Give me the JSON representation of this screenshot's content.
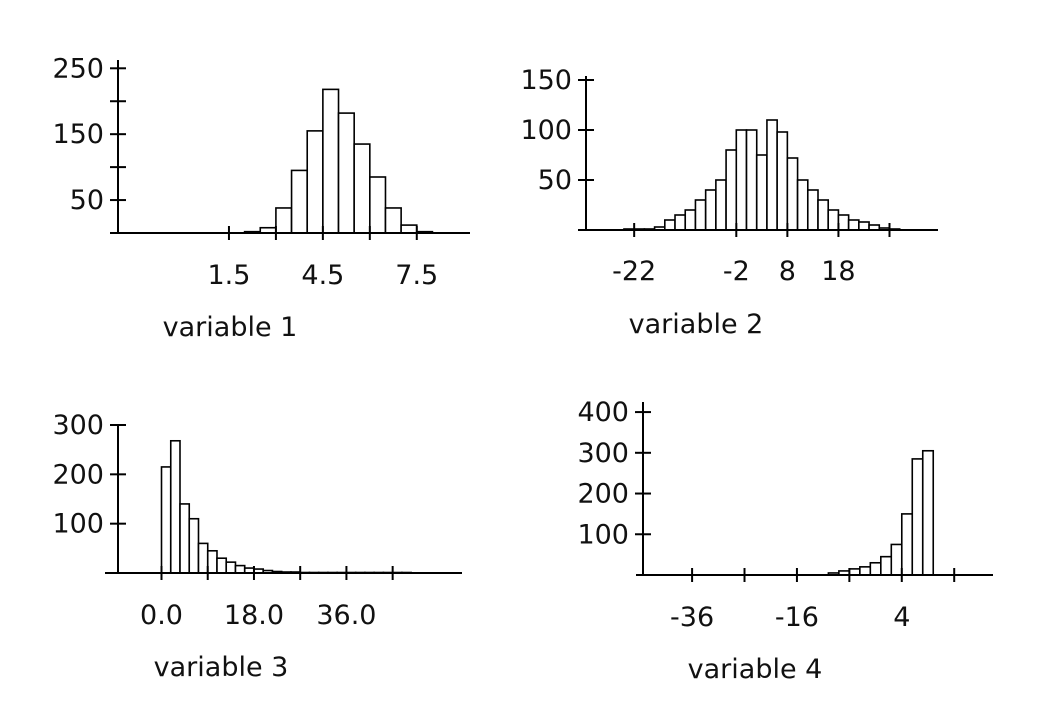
{
  "chart_data": [
    {
      "type": "bar",
      "xlabel": "variable 1",
      "ylabel": "",
      "title": "",
      "x_ticks": [
        {
          "value": 1.5,
          "label": "1.5"
        },
        {
          "value": 3.0,
          "label": ""
        },
        {
          "value": 4.5,
          "label": "4.5"
        },
        {
          "value": 6.0,
          "label": ""
        },
        {
          "value": 7.5,
          "label": "7.5"
        }
      ],
      "y_ticks": [
        {
          "value": 50,
          "label": "50"
        },
        {
          "value": 100,
          "label": ""
        },
        {
          "value": 150,
          "label": "150"
        },
        {
          "value": 200,
          "label": ""
        },
        {
          "value": 250,
          "label": "250"
        }
      ],
      "xlim": [
        -2.3,
        9.2
      ],
      "ylim": [
        0,
        255
      ],
      "bin_edges": [
        2.0,
        2.5,
        3.0,
        3.5,
        4.0,
        4.5,
        5.0,
        5.5,
        6.0,
        6.5,
        7.0,
        7.5,
        8.0
      ],
      "values": [
        2,
        8,
        38,
        95,
        155,
        218,
        182,
        135,
        85,
        38,
        12,
        2
      ]
    },
    {
      "type": "bar",
      "xlabel": "variable 2",
      "ylabel": "",
      "title": "",
      "x_ticks": [
        {
          "value": -22,
          "label": "-22"
        },
        {
          "value": -2,
          "label": "-2"
        },
        {
          "value": 8,
          "label": "8"
        },
        {
          "value": 18,
          "label": "18"
        },
        {
          "value": 28,
          "label": ""
        }
      ],
      "y_ticks": [
        {
          "value": 50,
          "label": "50"
        },
        {
          "value": 100,
          "label": "100"
        },
        {
          "value": 150,
          "label": "150"
        }
      ],
      "xlim": [
        -33,
        37.5
      ],
      "ylim": [
        0,
        150
      ],
      "bin_edges": [
        -24,
        -22,
        -20,
        -18,
        -16,
        -14,
        -12,
        -10,
        -8,
        -6,
        -4,
        -2,
        0,
        2,
        4,
        6,
        8,
        10,
        12,
        14,
        16,
        18,
        20,
        22,
        24,
        26,
        28,
        30
      ],
      "values": [
        1,
        1,
        1,
        3,
        10,
        15,
        20,
        30,
        40,
        50,
        80,
        100,
        100,
        75,
        110,
        98,
        72,
        50,
        40,
        30,
        20,
        15,
        10,
        8,
        5,
        2,
        1
      ]
    },
    {
      "type": "bar",
      "xlabel": "variable 3",
      "ylabel": "",
      "title": "",
      "x_ticks": [
        {
          "value": 0.0,
          "label": "0.0"
        },
        {
          "value": 9.0,
          "label": ""
        },
        {
          "value": 18.0,
          "label": "18.0"
        },
        {
          "value": 27.0,
          "label": ""
        },
        {
          "value": 36.0,
          "label": "36.0"
        },
        {
          "value": 45.0,
          "label": ""
        }
      ],
      "y_ticks": [
        {
          "value": 100,
          "label": "100"
        },
        {
          "value": 200,
          "label": "200"
        },
        {
          "value": 300,
          "label": "300"
        }
      ],
      "xlim": [
        -11,
        58.5
      ],
      "ylim": [
        0,
        300
      ],
      "bin_edges": [
        0,
        1.8,
        3.6,
        5.4,
        7.2,
        9,
        10.8,
        12.6,
        14.4,
        16.2,
        18,
        19.8,
        21.6,
        23.4,
        25.2,
        27,
        28.8,
        30.6,
        32.4,
        34.2,
        36,
        37.8,
        39.6,
        41.4,
        43.2,
        45,
        46.8,
        48.6
      ],
      "values": [
        215,
        268,
        140,
        110,
        60,
        45,
        30,
        22,
        15,
        10,
        8,
        5,
        3,
        2,
        2,
        1,
        1,
        1,
        1,
        1,
        1,
        1,
        1,
        1,
        1,
        1,
        1
      ]
    },
    {
      "type": "bar",
      "xlabel": "variable 4",
      "ylabel": "",
      "title": "",
      "x_ticks": [
        {
          "value": -36,
          "label": "-36"
        },
        {
          "value": -26,
          "label": ""
        },
        {
          "value": -16,
          "label": "-16"
        },
        {
          "value": -6,
          "label": ""
        },
        {
          "value": 4,
          "label": "4"
        },
        {
          "value": 14,
          "label": ""
        }
      ],
      "y_ticks": [
        {
          "value": 100,
          "label": "100"
        },
        {
          "value": 200,
          "label": "200"
        },
        {
          "value": 300,
          "label": "300"
        },
        {
          "value": 400,
          "label": "400"
        }
      ],
      "xlim": [
        -46.7,
        21.4
      ],
      "ylim": [
        0,
        410
      ],
      "bin_edges": [
        -10,
        -8,
        -6,
        -4,
        -2,
        0,
        2,
        4,
        6,
        8,
        10
      ],
      "values": [
        5,
        10,
        15,
        20,
        30,
        45,
        75,
        150,
        285,
        305
      ]
    }
  ]
}
